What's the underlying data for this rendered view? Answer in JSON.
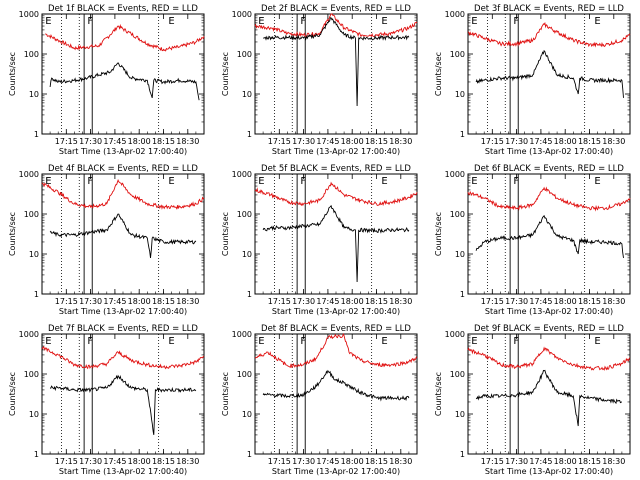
{
  "figure": {
    "background": "#ffffff"
  },
  "colors": {
    "events": "#000000",
    "lld": "#e01010",
    "axes": "#000000"
  },
  "common": {
    "ylabel": "Counts/sec",
    "xlabel": "Start Time (13-Apr-02 17:00:40)",
    "yticks": [
      "1",
      "10",
      "100",
      "1000"
    ],
    "xticks": [
      "17:15",
      "17:30",
      "17:45",
      "18:00",
      "18:15",
      "18:30"
    ],
    "markers": [
      "E",
      "F",
      "E"
    ]
  },
  "chart_data": [
    {
      "type": "line",
      "title": "Det 1f BLACK = Events, RED = LLD",
      "xlabel": "Start Time (13-Apr-02 17:00:40)",
      "ylabel": "Counts/sec",
      "yscale": "log",
      "ylim": [
        1,
        1000
      ],
      "x_unit": "time",
      "xlim": [
        "17:00",
        "18:40"
      ],
      "xticks": [
        "17:15",
        "17:30",
        "17:45",
        "18:00",
        "18:15",
        "18:30"
      ],
      "markers": [
        {
          "label": "E",
          "time": "17:02"
        },
        {
          "label": "F",
          "time": "17:28"
        },
        {
          "label": "E",
          "time": "18:18"
        }
      ],
      "dotted_lines": [
        "17:12",
        "17:23",
        "18:12"
      ],
      "solid_lines": [
        "17:26",
        "17:31"
      ],
      "series": [
        {
          "name": "LLD",
          "color": "#e01010",
          "x": [
            "17:02",
            "17:10",
            "17:20",
            "17:28",
            "17:35",
            "17:42",
            "17:47",
            "17:55",
            "18:05",
            "18:15",
            "18:25",
            "18:35",
            "18:40"
          ],
          "y": [
            320,
            220,
            140,
            150,
            160,
            300,
            500,
            320,
            180,
            130,
            150,
            200,
            280
          ]
        },
        {
          "name": "Events",
          "color": "#000000",
          "x": [
            "17:05",
            "17:06",
            "17:10",
            "17:20",
            "17:28",
            "17:35",
            "17:42",
            "17:47",
            "17:55",
            "18:05",
            "18:08",
            "18:09",
            "18:15",
            "18:25",
            "18:35",
            "18:37"
          ],
          "y": [
            15,
            25,
            20,
            22,
            25,
            30,
            35,
            60,
            25,
            22,
            8,
            22,
            20,
            22,
            20,
            7
          ]
        }
      ]
    },
    {
      "type": "line",
      "title": "Det 2f BLACK = Events, RED = LLD",
      "xlabel": "Start Time (13-Apr-02 17:00:40)",
      "ylabel": "Counts/sec",
      "yscale": "log",
      "ylim": [
        1,
        1000
      ],
      "x_unit": "time",
      "xlim": [
        "17:00",
        "18:40"
      ],
      "xticks": [
        "17:15",
        "17:30",
        "17:45",
        "18:00",
        "18:15",
        "18:30"
      ],
      "markers": [
        {
          "label": "E",
          "time": "17:02"
        },
        {
          "label": "F",
          "time": "17:28"
        },
        {
          "label": "E",
          "time": "18:18"
        }
      ],
      "dotted_lines": [
        "17:12",
        "17:23",
        "18:12"
      ],
      "solid_lines": [
        "17:26",
        "17:31"
      ],
      "series": [
        {
          "name": "LLD",
          "color": "#e01010",
          "x": [
            "17:00",
            "17:10",
            "17:20",
            "17:30",
            "17:40",
            "17:47",
            "17:55",
            "18:05",
            "18:15",
            "18:25",
            "18:35",
            "18:40"
          ],
          "y": [
            500,
            450,
            330,
            300,
            330,
            1000,
            450,
            300,
            300,
            330,
            450,
            600
          ]
        },
        {
          "name": "Events",
          "color": "#000000",
          "x": [
            "17:05",
            "17:10",
            "17:20",
            "17:30",
            "17:40",
            "17:47",
            "17:55",
            "18:02",
            "18:03",
            "18:04",
            "18:15",
            "18:25",
            "18:35"
          ],
          "y": [
            250,
            260,
            260,
            250,
            300,
            800,
            300,
            250,
            5,
            250,
            250,
            260,
            260
          ]
        }
      ]
    },
    {
      "type": "line",
      "title": "Det 3f BLACK = Events, RED = LLD",
      "xlabel": "Start Time (13-Apr-02 17:00:40)",
      "ylabel": "Counts/sec",
      "yscale": "log",
      "ylim": [
        1,
        1000
      ],
      "x_unit": "time",
      "xlim": [
        "17:00",
        "18:40"
      ],
      "xticks": [
        "17:15",
        "17:30",
        "17:45",
        "18:00",
        "18:15",
        "18:30"
      ],
      "markers": [
        {
          "label": "E",
          "time": "17:02"
        },
        {
          "label": "F",
          "time": "17:28"
        },
        {
          "label": "E",
          "time": "18:18"
        }
      ],
      "dotted_lines": [
        "17:12",
        "17:23",
        "18:12"
      ],
      "solid_lines": [
        "17:26",
        "17:31"
      ],
      "series": [
        {
          "name": "LLD",
          "color": "#e01010",
          "x": [
            "17:00",
            "17:10",
            "17:20",
            "17:30",
            "17:40",
            "17:47",
            "17:55",
            "18:05",
            "18:15",
            "18:25",
            "18:35",
            "18:40"
          ],
          "y": [
            350,
            250,
            180,
            180,
            220,
            550,
            350,
            220,
            170,
            170,
            220,
            300
          ]
        },
        {
          "name": "Events",
          "color": "#000000",
          "x": [
            "17:05",
            "17:10",
            "17:20",
            "17:30",
            "17:40",
            "17:47",
            "17:55",
            "18:05",
            "18:08",
            "18:09",
            "18:15",
            "18:25",
            "18:35",
            "18:36"
          ],
          "y": [
            20,
            22,
            25,
            25,
            30,
            120,
            30,
            25,
            10,
            25,
            22,
            22,
            22,
            8
          ]
        }
      ]
    },
    {
      "type": "line",
      "title": "Det 4f BLACK = Events, RED = LLD",
      "xlabel": "Start Time (13-Apr-02 17:00:40)",
      "ylabel": "Counts/sec",
      "yscale": "log",
      "ylim": [
        1,
        1000
      ],
      "x_unit": "time",
      "xlim": [
        "17:00",
        "18:40"
      ],
      "xticks": [
        "17:15",
        "17:30",
        "17:45",
        "18:00",
        "18:15",
        "18:30"
      ],
      "markers": [
        {
          "label": "E",
          "time": "17:02"
        },
        {
          "label": "F",
          "time": "17:28"
        },
        {
          "label": "E",
          "time": "18:18"
        }
      ],
      "dotted_lines": [
        "17:12",
        "17:23",
        "18:12"
      ],
      "solid_lines": [
        "17:26",
        "17:31"
      ],
      "series": [
        {
          "name": "LLD",
          "color": "#e01010",
          "x": [
            "17:00",
            "17:10",
            "17:20",
            "17:30",
            "17:40",
            "17:47",
            "17:55",
            "18:05",
            "18:15",
            "18:25",
            "18:35",
            "18:40"
          ],
          "y": [
            600,
            350,
            180,
            150,
            180,
            700,
            300,
            180,
            150,
            150,
            180,
            250
          ]
        },
        {
          "name": "Events",
          "color": "#000000",
          "x": [
            "17:05",
            "17:10",
            "17:20",
            "17:30",
            "17:40",
            "17:47",
            "17:55",
            "18:05",
            "18:07",
            "18:08",
            "18:15",
            "18:25",
            "18:35"
          ],
          "y": [
            35,
            30,
            30,
            35,
            40,
            100,
            30,
            25,
            8,
            25,
            20,
            20,
            20
          ]
        }
      ]
    },
    {
      "type": "line",
      "title": "Det 5f BLACK = Events, RED = LLD",
      "xlabel": "Start Time (13-Apr-02 17:00:40)",
      "ylabel": "Counts/sec",
      "yscale": "log",
      "ylim": [
        1,
        1000
      ],
      "x_unit": "time",
      "xlim": [
        "17:00",
        "18:40"
      ],
      "xticks": [
        "17:15",
        "17:30",
        "17:45",
        "18:00",
        "18:15",
        "18:30"
      ],
      "markers": [
        {
          "label": "E",
          "time": "17:02"
        },
        {
          "label": "F",
          "time": "17:28"
        },
        {
          "label": "E",
          "time": "18:18"
        }
      ],
      "dotted_lines": [
        "17:12",
        "17:23",
        "18:12"
      ],
      "solid_lines": [
        "17:26",
        "17:31"
      ],
      "series": [
        {
          "name": "LLD",
          "color": "#e01010",
          "x": [
            "17:00",
            "17:10",
            "17:20",
            "17:30",
            "17:40",
            "17:47",
            "17:55",
            "18:05",
            "18:15",
            "18:25",
            "18:35",
            "18:40"
          ],
          "y": [
            400,
            300,
            200,
            180,
            220,
            600,
            300,
            220,
            180,
            200,
            260,
            350
          ]
        },
        {
          "name": "Events",
          "color": "#000000",
          "x": [
            "17:05",
            "17:10",
            "17:20",
            "17:30",
            "17:40",
            "17:47",
            "17:55",
            "18:02",
            "18:03",
            "18:04",
            "18:15",
            "18:25",
            "18:35"
          ],
          "y": [
            40,
            45,
            45,
            50,
            55,
            160,
            45,
            40,
            2,
            40,
            38,
            40,
            40
          ]
        }
      ]
    },
    {
      "type": "line",
      "title": "Det 6f BLACK = Events, RED = LLD",
      "xlabel": "Start Time (13-Apr-02 17:00:40)",
      "ylabel": "Counts/sec",
      "yscale": "log",
      "ylim": [
        1,
        1000
      ],
      "x_unit": "time",
      "xlim": [
        "17:00",
        "18:40"
      ],
      "xticks": [
        "17:15",
        "17:30",
        "17:45",
        "18:00",
        "18:15",
        "18:30"
      ],
      "markers": [
        {
          "label": "E",
          "time": "17:02"
        },
        {
          "label": "F",
          "time": "17:28"
        },
        {
          "label": "E",
          "time": "18:18"
        }
      ],
      "dotted_lines": [
        "17:12",
        "17:23",
        "18:12"
      ],
      "solid_lines": [
        "17:26",
        "17:31"
      ],
      "series": [
        {
          "name": "LLD",
          "color": "#e01010",
          "x": [
            "17:00",
            "17:10",
            "17:20",
            "17:30",
            "17:40",
            "17:47",
            "17:55",
            "18:05",
            "18:15",
            "18:25",
            "18:35",
            "18:40"
          ],
          "y": [
            350,
            250,
            150,
            140,
            170,
            450,
            250,
            170,
            140,
            140,
            180,
            250
          ]
        },
        {
          "name": "Events",
          "color": "#000000",
          "x": [
            "17:05",
            "17:10",
            "17:20",
            "17:30",
            "17:40",
            "17:47",
            "17:55",
            "18:05",
            "18:08",
            "18:09",
            "18:15",
            "18:25",
            "18:35",
            "18:36"
          ],
          "y": [
            12,
            20,
            25,
            25,
            30,
            90,
            28,
            22,
            10,
            22,
            20,
            20,
            18,
            8
          ]
        }
      ]
    },
    {
      "type": "line",
      "title": "Det 7f BLACK = Events, RED = LLD",
      "xlabel": "Start Time (13-Apr-02 17:00:40)",
      "ylabel": "Counts/sec",
      "yscale": "log",
      "ylim": [
        1,
        1000
      ],
      "x_unit": "time",
      "xlim": [
        "17:00",
        "18:40"
      ],
      "xticks": [
        "17:15",
        "17:30",
        "17:45",
        "18:00",
        "18:15",
        "18:30"
      ],
      "markers": [
        {
          "label": "E",
          "time": "17:02"
        },
        {
          "label": "F",
          "time": "17:28"
        },
        {
          "label": "E",
          "time": "18:18"
        }
      ],
      "dotted_lines": [
        "17:12",
        "17:23",
        "18:12"
      ],
      "solid_lines": [
        "17:26",
        "17:31"
      ],
      "series": [
        {
          "name": "LLD",
          "color": "#e01010",
          "x": [
            "17:00",
            "17:10",
            "17:20",
            "17:30",
            "17:40",
            "17:47",
            "17:55",
            "18:05",
            "18:15",
            "18:25",
            "18:35",
            "18:40"
          ],
          "y": [
            450,
            300,
            170,
            150,
            180,
            350,
            220,
            170,
            150,
            160,
            200,
            280
          ]
        },
        {
          "name": "Events",
          "color": "#000000",
          "x": [
            "17:05",
            "17:10",
            "17:20",
            "17:30",
            "17:40",
            "17:47",
            "17:55",
            "18:05",
            "18:09",
            "18:10",
            "18:11",
            "18:15",
            "18:25",
            "18:35"
          ],
          "y": [
            45,
            45,
            40,
            40,
            45,
            90,
            45,
            40,
            3,
            40,
            40,
            40,
            40,
            40
          ]
        }
      ]
    },
    {
      "type": "line",
      "title": "Det 8f BLACK = Events, RED = LLD",
      "xlabel": "Start Time (13-Apr-02 17:00:40)",
      "ylabel": "Counts/sec",
      "yscale": "log",
      "ylim": [
        1,
        1000
      ],
      "x_unit": "time",
      "xlim": [
        "17:00",
        "18:40"
      ],
      "xticks": [
        "17:15",
        "17:30",
        "17:45",
        "18:00",
        "18:15",
        "18:30"
      ],
      "markers": [
        {
          "label": "E",
          "time": "17:02"
        },
        {
          "label": "F",
          "time": "17:28"
        },
        {
          "label": "E",
          "time": "18:18"
        }
      ],
      "dotted_lines": [
        "17:12",
        "17:23",
        "18:12"
      ],
      "solid_lines": [
        "17:26",
        "17:31"
      ],
      "series": [
        {
          "name": "LLD",
          "color": "#e01010",
          "x": [
            "17:00",
            "17:08",
            "17:20",
            "17:30",
            "17:38",
            "17:45",
            "17:50",
            "17:55",
            "17:58",
            "18:05",
            "18:15",
            "18:25",
            "18:35",
            "18:40"
          ],
          "y": [
            250,
            350,
            160,
            170,
            250,
            800,
            900,
            900,
            350,
            220,
            170,
            170,
            200,
            260
          ]
        },
        {
          "name": "Events",
          "color": "#000000",
          "x": [
            "17:05",
            "17:10",
            "17:20",
            "17:30",
            "17:38",
            "17:45",
            "17:50",
            "17:55",
            "18:02",
            "18:05",
            "18:15",
            "18:25",
            "18:35"
          ],
          "y": [
            30,
            30,
            28,
            30,
            50,
            120,
            70,
            60,
            40,
            35,
            25,
            25,
            25
          ]
        }
      ]
    },
    {
      "type": "line",
      "title": "Det 9f BLACK = Events, RED = LLD",
      "xlabel": "Start Time (13-Apr-02 17:00:40)",
      "ylabel": "Counts/sec",
      "yscale": "log",
      "ylim": [
        1,
        1000
      ],
      "x_unit": "time",
      "xlim": [
        "17:00",
        "18:40"
      ],
      "xticks": [
        "17:15",
        "17:30",
        "17:45",
        "18:00",
        "18:15",
        "18:30"
      ],
      "markers": [
        {
          "label": "E",
          "time": "17:02"
        },
        {
          "label": "F",
          "time": "17:28"
        },
        {
          "label": "E",
          "time": "18:18"
        }
      ],
      "dotted_lines": [
        "17:12",
        "17:23",
        "18:12"
      ],
      "solid_lines": [
        "17:26",
        "17:31"
      ],
      "series": [
        {
          "name": "LLD",
          "color": "#e01010",
          "x": [
            "17:00",
            "17:10",
            "17:20",
            "17:30",
            "17:40",
            "17:47",
            "17:55",
            "18:05",
            "18:15",
            "18:25",
            "18:35",
            "18:40"
          ],
          "y": [
            400,
            300,
            170,
            150,
            180,
            450,
            250,
            170,
            140,
            140,
            180,
            250
          ]
        },
        {
          "name": "Events",
          "color": "#000000",
          "x": [
            "17:05",
            "17:10",
            "17:20",
            "17:30",
            "17:40",
            "17:47",
            "17:55",
            "18:05",
            "18:08",
            "18:09",
            "18:15",
            "18:25",
            "18:35"
          ],
          "y": [
            25,
            28,
            28,
            30,
            35,
            120,
            35,
            28,
            5,
            28,
            25,
            22,
            20
          ]
        }
      ]
    }
  ]
}
